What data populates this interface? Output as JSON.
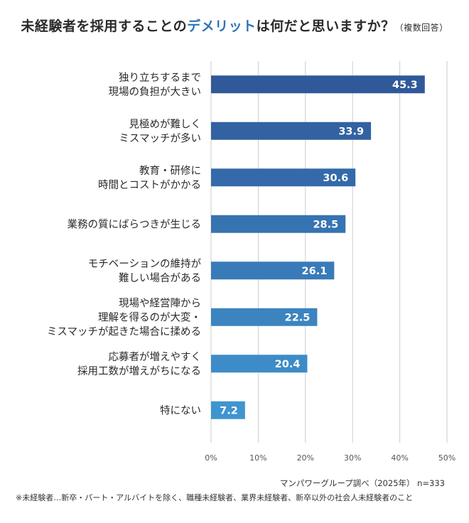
{
  "title": {
    "prefix": "未経験者を採用することの",
    "highlight": "デメリット",
    "suffix": "は何だと思いますか？",
    "note": "（複数回答）"
  },
  "source": "マンパワーグループ調べ（2025年） n=333",
  "footnote": "※未経験者…新卒・パート・アルバイトを除く、職種未経験者、業界未経験者、新卒以外の社会人未経験者のこと",
  "colors": {
    "bar_dark": "#30599a",
    "bar_light": "#3f95cf",
    "grid": "#cccccc",
    "highlight": "#2f73b8"
  },
  "chart_data": {
    "type": "bar",
    "orientation": "horizontal",
    "categories": [
      [
        "独り立ちするまで",
        "現場の負担が大きい"
      ],
      [
        "見極めが難しく",
        "ミスマッチが多い"
      ],
      [
        "教育・研修に",
        "時間とコストがかかる"
      ],
      [
        "業務の質にばらつきが生じる"
      ],
      [
        "モチベーションの維持が",
        "難しい場合がある"
      ],
      [
        "現場や経営陣から",
        "理解を得るのが大変・",
        "ミスマッチが起きた場合に揉める"
      ],
      [
        "応募者が増えやすく",
        "採用工数が増えがちになる"
      ],
      [
        "特にない"
      ]
    ],
    "values": [
      45.3,
      33.9,
      30.6,
      28.5,
      26.1,
      22.5,
      20.4,
      7.2
    ],
    "value_labels": [
      "45.3",
      "33.9",
      "30.6",
      "28.5",
      "26.1",
      "22.5",
      "20.4",
      "7.2"
    ],
    "xlim": [
      0,
      50
    ],
    "ticks": [
      0,
      10,
      20,
      30,
      40,
      50
    ],
    "tick_labels": [
      "0%",
      "10%",
      "20%",
      "30%",
      "40%",
      "50%"
    ],
    "grid": true
  }
}
